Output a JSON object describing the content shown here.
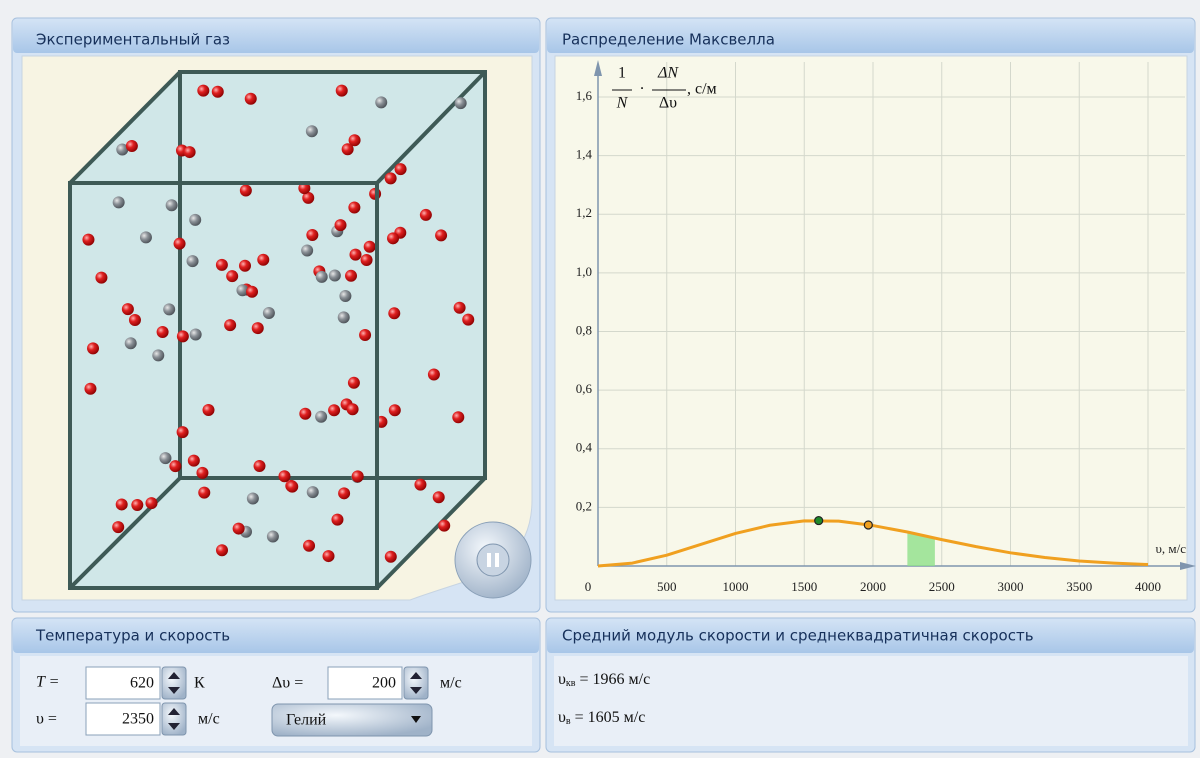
{
  "panels": {
    "gas": {
      "title": "Экспериментальный газ"
    },
    "maxwell": {
      "title": "Распределение Максвелла"
    },
    "controls": {
      "title": "Температура и скорость",
      "t_label": "T =",
      "t_value": "620",
      "t_unit": "К",
      "dv_label": "Δυ =",
      "dv_value": "200",
      "dv_unit": "м/с",
      "v_label": "υ =",
      "v_value": "2350",
      "v_unit": "м/с",
      "gas_select": "Гелий"
    },
    "speeds": {
      "title": "Средний модуль скорости и среднеквадратичная скорость",
      "rms_symbol": "υ",
      "rms_sub": "кв",
      "rms_text": " = 1966 м/с",
      "prob_symbol": "υ",
      "prob_sub": "в",
      "prob_text": "  = 1605 м/с"
    }
  },
  "chart_data": {
    "type": "line",
    "ylabel": {
      "num1": "1",
      "den1": "N",
      "dot": "·",
      "num2": "ΔN",
      "den2": "Δυ",
      "unit": ", с/м"
    },
    "xlabel": "υ, м/с",
    "x": [
      0,
      250,
      500,
      750,
      1000,
      1250,
      1500,
      1750,
      2000,
      2250,
      2500,
      2750,
      3000,
      3250,
      3500,
      3750,
      4000
    ],
    "series": [
      {
        "color": "#f0a020",
        "values": [
          0,
          0.01,
          0.037,
          0.074,
          0.111,
          0.139,
          0.154,
          0.153,
          0.138,
          0.116,
          0.09,
          0.066,
          0.045,
          0.029,
          0.017,
          0.01,
          0.005
        ]
      }
    ],
    "points": [
      {
        "x": 1605,
        "value": 0.155,
        "color": "#1f8a2a"
      },
      {
        "x": 1966,
        "value": 0.14,
        "color": "#f0a020"
      }
    ],
    "band": {
      "x": [
        2250,
        2450
      ],
      "values": [
        0.116,
        0.096
      ],
      "color": "#8ee08a"
    },
    "xlim": [
      0,
      4000
    ],
    "ylim": [
      0,
      1.6
    ],
    "xticks": [
      0,
      500,
      1000,
      1500,
      2000,
      2500,
      3000,
      3500,
      4000
    ],
    "yticks": [
      {
        "value": 0.2,
        "label": "0,2"
      },
      {
        "value": 0.4,
        "label": "0,4"
      },
      {
        "value": 0.6,
        "label": "0,6"
      },
      {
        "value": 0.8,
        "label": "0,8"
      },
      {
        "value": 1.0,
        "label": "1,0"
      },
      {
        "value": 1.2,
        "label": "1,2"
      },
      {
        "value": 1.4,
        "label": "1,4"
      },
      {
        "value": 1.6,
        "label": "1,6"
      }
    ],
    "grid": true
  }
}
